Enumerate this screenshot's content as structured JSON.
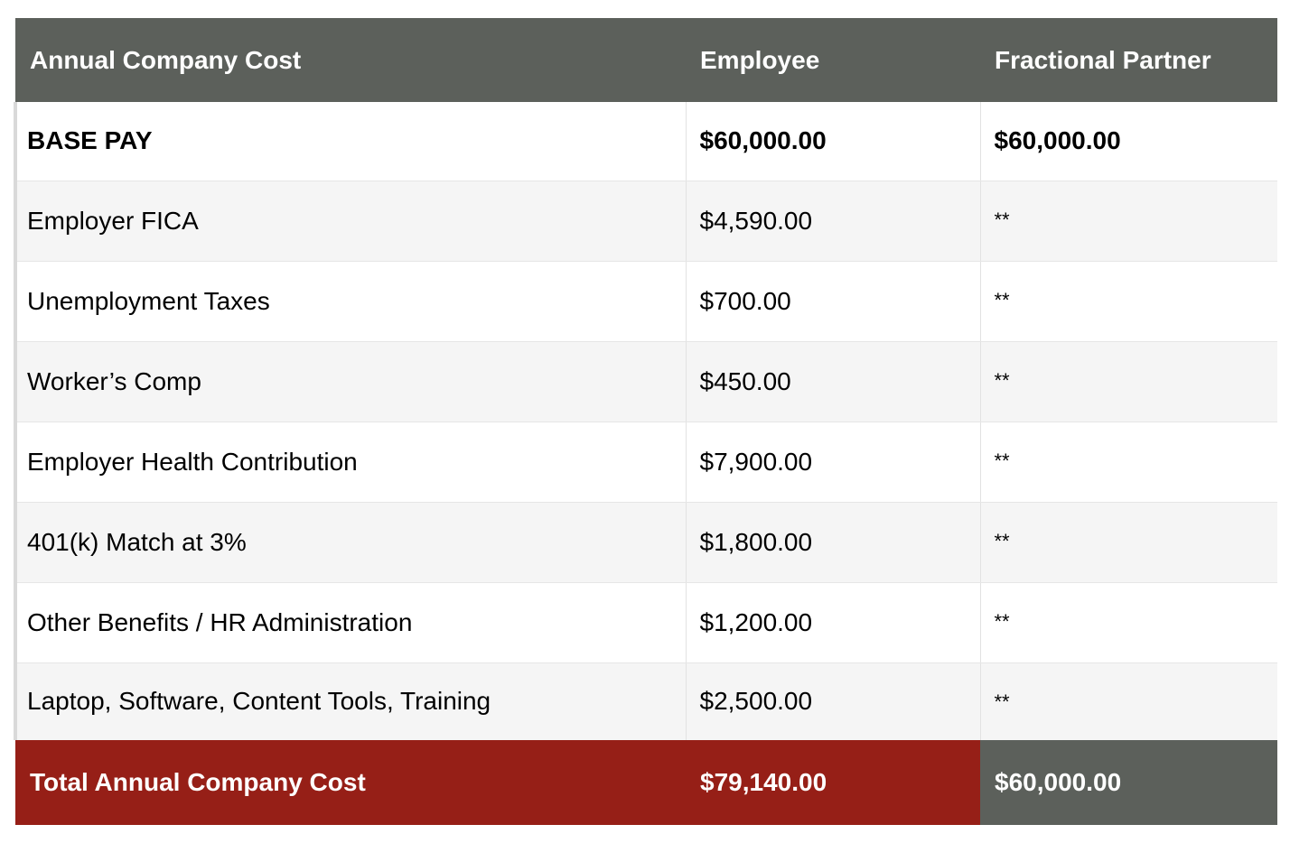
{
  "table": {
    "headers": [
      "Annual Company Cost",
      "Employee",
      "Fractional Partner"
    ],
    "rows": [
      {
        "label": "BASE PAY",
        "employee": "$60,000.00",
        "partner": "$60,000.00"
      },
      {
        "label": "Employer FICA",
        "employee": "$4,590.00",
        "partner": "**"
      },
      {
        "label": "Unemployment Taxes",
        "employee": "$700.00",
        "partner": "**"
      },
      {
        "label": "Worker’s Comp",
        "employee": "$450.00",
        "partner": "**"
      },
      {
        "label": "Employer Health Contribution",
        "employee": "$7,900.00",
        "partner": "**"
      },
      {
        "label": "401(k) Match at 3%",
        "employee": "$1,800.00",
        "partner": "**"
      },
      {
        "label": "Other Benefits / HR Administration",
        "employee": "$1,200.00",
        "partner": "**"
      },
      {
        "label": "Laptop, Software, Content Tools, Training",
        "employee": "$2,500.00",
        "partner": "**"
      }
    ],
    "total": {
      "label": "Total Annual Company Cost",
      "employee": "$79,140.00",
      "partner": "$60,000.00"
    }
  },
  "colors": {
    "header_bg": "#5c605b",
    "total_accent": "#961f17",
    "row_alt": "#f5f5f5"
  }
}
